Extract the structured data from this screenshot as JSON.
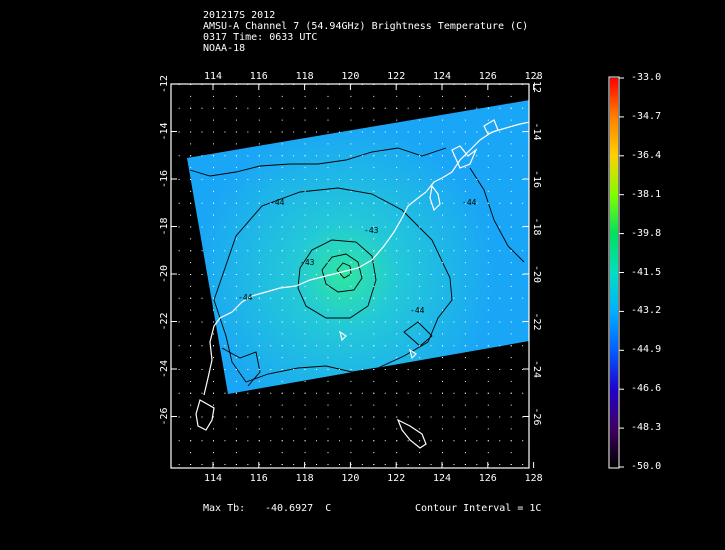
{
  "header": {
    "line1": "201217S 2012",
    "line2": "AMSU-A Channel 7 (54.94GHz) Brightness Temperature (C)",
    "line3": "0317 Time: 0633 UTC",
    "line4": "NOAA-18"
  },
  "map": {
    "lon_ticks": [
      "114",
      "116",
      "118",
      "120",
      "122",
      "124",
      "126",
      "128"
    ],
    "lat_ticks": [
      "-12",
      "-14",
      "-16",
      "-18",
      "-20",
      "-22",
      "-24",
      "-26"
    ],
    "contour_labels": [
      "-44",
      "-43",
      "-43",
      "-44",
      "-44",
      "-44"
    ]
  },
  "colorbar": {
    "ticks": [
      "-33.0",
      "-34.7",
      "-36.4",
      "-38.1",
      "-39.8",
      "-41.5",
      "-43.2",
      "-44.9",
      "-46.6",
      "-48.3",
      "-50.0"
    ],
    "colors": [
      "#ff0000",
      "#ff8000",
      "#ffd000",
      "#80ff00",
      "#00e060",
      "#00e0c0",
      "#00b0ff",
      "#0060ff",
      "#2000d0",
      "#400060",
      "#000000"
    ]
  },
  "footer": {
    "max_label": "Max Tb:",
    "max_value": "-40.6927  C",
    "contour_interval": "Contour Interval = 1C"
  },
  "colors": {
    "background": "#000000",
    "swath_base": "#22aaff",
    "warm_core": "#2ce8a8",
    "coastline": "#ffffff",
    "contour": "#000000"
  }
}
